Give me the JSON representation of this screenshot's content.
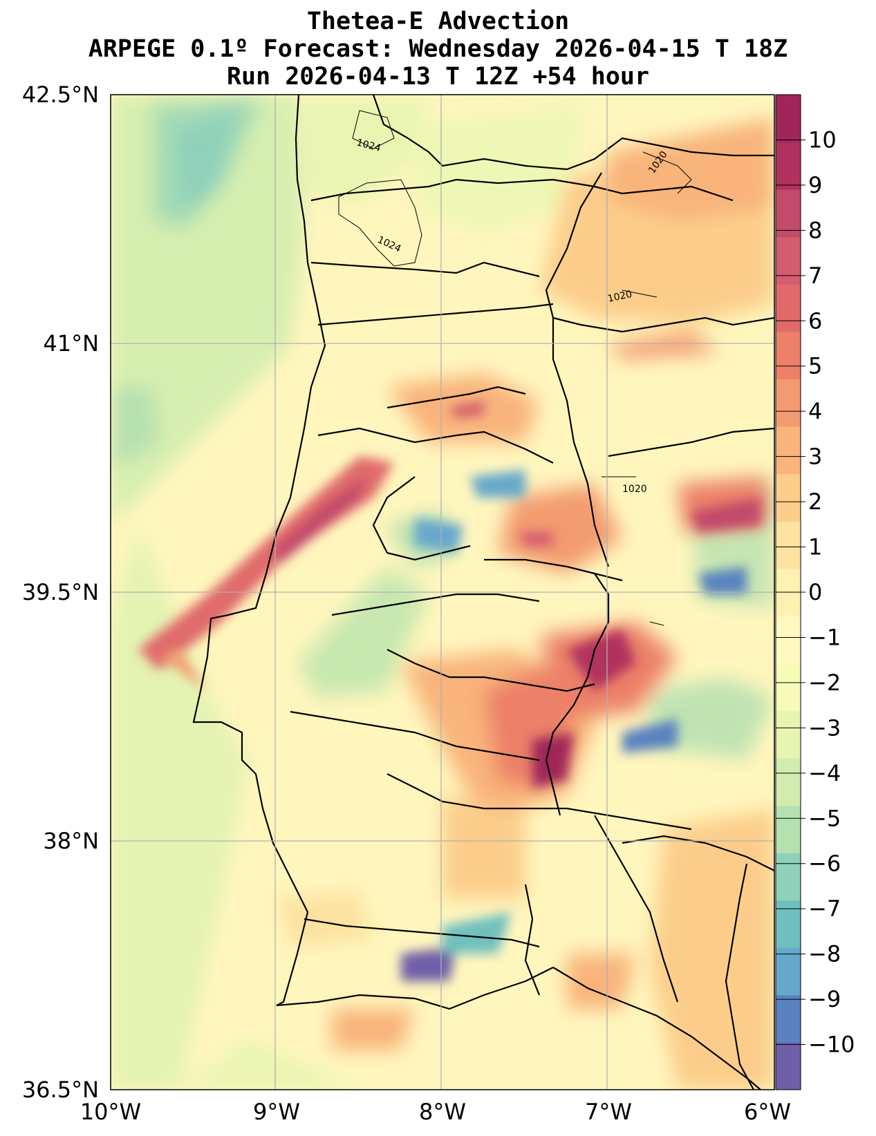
{
  "title": {
    "line1": "Thetea-E Advection",
    "line2": "ARPEGE 0.1º Forecast: Wednesday 2026-04-15 T 18Z",
    "line3": "Run 2026-04-13 T 12Z +54 hour"
  },
  "axes": {
    "lat_labels": [
      "42.5°N",
      "41°N",
      "39.5°N",
      "38°N",
      "36.5°N"
    ],
    "lon_labels": [
      "10°W",
      "9°W",
      "8°W",
      "7°W",
      "6°W"
    ],
    "lat_values": [
      42.5,
      41,
      39.5,
      38,
      36.5
    ],
    "lon_values": [
      -10,
      -9,
      -8,
      -7,
      -6
    ]
  },
  "colorbar": {
    "min": -11,
    "max": 11,
    "ticks": [
      10,
      9,
      8,
      7,
      6,
      5,
      4,
      3,
      2,
      1,
      0,
      -1,
      -2,
      -3,
      -4,
      -5,
      -6,
      -7,
      -8,
      -9,
      -10
    ],
    "tick_labels": [
      "10",
      "9",
      "8",
      "7",
      "6",
      "5",
      "4",
      "3",
      "2",
      "1",
      "0",
      "−1",
      "−2",
      "−3",
      "−4",
      "−5",
      "−6",
      "−7",
      "−8",
      "−9",
      "−10"
    ],
    "colors": [
      "#6f5ea8",
      "#5a82c0",
      "#66a8cc",
      "#6fbfbe",
      "#8fd1ba",
      "#b5e0b0",
      "#d2ecb0",
      "#e8f5b0",
      "#f6fbb8",
      "#fff9c0",
      "#fff1b0",
      "#fde2a0",
      "#fccd8a",
      "#f8b47a",
      "#f39b70",
      "#ec8068",
      "#e06a6a",
      "#d35c6e",
      "#c24a6a",
      "#b0305e",
      "#a0265a"
    ]
  },
  "isobars": [
    "1024",
    "1024",
    "1020",
    "1020",
    "1020"
  ]
}
